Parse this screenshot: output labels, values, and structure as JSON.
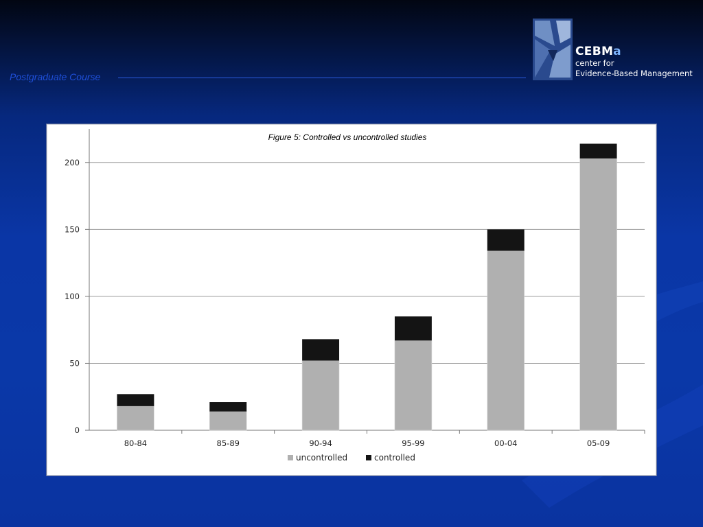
{
  "header": {
    "course_label": "Postgraduate Course"
  },
  "logo": {
    "brand_main": "CEBM",
    "brand_accent": "a",
    "line1": "center for",
    "line2": "Evidence-Based Management"
  },
  "colors": {
    "uncontrolled": "#b0b0b0",
    "controlled": "#141414",
    "gridline": "#9a9a9a",
    "header_text": "#1f4fd8"
  },
  "chart_data": {
    "type": "bar",
    "stacked": true,
    "title": "Figure 5: Controlled vs uncontrolled studies",
    "categories": [
      "80-84",
      "85-89",
      "90-94",
      "95-99",
      "00-04",
      "05-09"
    ],
    "series": [
      {
        "name": "uncontrolled",
        "values": [
          18,
          14,
          52,
          67,
          134,
          203
        ]
      },
      {
        "name": "controlled",
        "values": [
          9,
          7,
          16,
          18,
          16,
          11
        ]
      }
    ],
    "ylim": [
      0,
      225
    ],
    "yticks": [
      0,
      50,
      100,
      150,
      200
    ],
    "grid": true,
    "legend_position": "bottom-center"
  }
}
